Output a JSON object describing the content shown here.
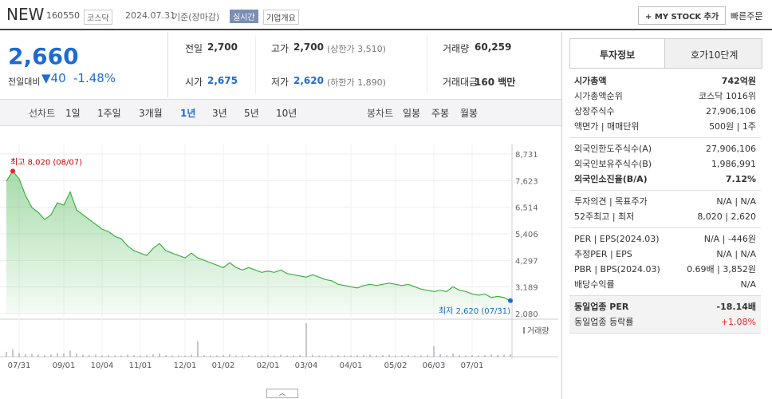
{
  "header": {
    "name": "NEW",
    "code": "160550",
    "market": "코스닥",
    "date": "2024.07.31",
    "basis": "기준(장마감)",
    "realtime": "실시간",
    "company_info": "기업개요",
    "my_stock": "MY STOCK 추가",
    "quick_order": "빠른주문"
  },
  "quote": {
    "price": "2,660",
    "change_label": "전일대비",
    "change": "40",
    "change_pct": "-1.48%",
    "fields": [
      {
        "label": "전일",
        "value": "2,700"
      },
      {
        "label": "고가",
        "value": "2,700",
        "extra": "(상한가 3,510)"
      },
      {
        "label": "거래량",
        "value": "60,259"
      },
      {
        "label": "시가",
        "value": "2,675"
      },
      {
        "label": "저가",
        "value": "2,620",
        "extra": "(하한가 1,890)"
      },
      {
        "label": "거래대금",
        "value": "160 백만"
      }
    ]
  },
  "tabs": {
    "line_label": "선차트",
    "periods": [
      "1일",
      "1주일",
      "3개월",
      "1년",
      "3년",
      "5년",
      "10년"
    ],
    "selected": 3,
    "candle_label": "봉차트",
    "candles": [
      "일봉",
      "주봉",
      "월봉"
    ]
  },
  "chart_data": {
    "type": "line",
    "color": "#3cb043",
    "categories": [
      null,
      null,
      "07/31",
      null,
      null,
      null,
      null,
      null,
      null,
      "09/01",
      null,
      null,
      null,
      null,
      null,
      "10/04",
      null,
      null,
      null,
      null,
      null,
      "11/01",
      null,
      null,
      null,
      null,
      null,
      null,
      "12/01",
      null,
      null,
      null,
      null,
      null,
      "01/02",
      null,
      null,
      null,
      null,
      null,
      null,
      "02/01",
      null,
      null,
      null,
      null,
      null,
      "03/04",
      null,
      null,
      null,
      null,
      null,
      null,
      "04/01",
      null,
      null,
      null,
      null,
      null,
      null,
      "05/02",
      null,
      null,
      null,
      null,
      null,
      "06/03",
      null,
      null,
      null,
      null,
      null,
      "07/01",
      null,
      null,
      null,
      null,
      null,
      null
    ],
    "values": [
      7600,
      8020,
      7700,
      7000,
      6500,
      6300,
      6000,
      6200,
      6700,
      6600,
      7150,
      6400,
      6200,
      6000,
      5800,
      5600,
      5500,
      5300,
      5200,
      4900,
      4700,
      4600,
      4500,
      4800,
      5000,
      4700,
      4600,
      4500,
      4400,
      4600,
      4400,
      4300,
      4200,
      4100,
      4000,
      4200,
      4000,
      3900,
      4000,
      3900,
      3800,
      3850,
      3800,
      3900,
      3750,
      3700,
      3650,
      3600,
      3700,
      3600,
      3500,
      3450,
      3300,
      3250,
      3200,
      3150,
      3250,
      3300,
      3250,
      3300,
      3350,
      3300,
      3250,
      3300,
      3200,
      3100,
      3050,
      3000,
      3050,
      3000,
      3200,
      3050,
      3000,
      2900,
      2850,
      2900,
      2750,
      2800,
      2750,
      2620
    ],
    "ylim": [
      2080,
      8731
    ],
    "yticks": [
      {
        "value": 2080,
        "label": "2,080"
      },
      {
        "value": 3189,
        "label": "3,189"
      },
      {
        "value": 4297,
        "label": "4,297"
      },
      {
        "value": 5406,
        "label": "5,406"
      },
      {
        "value": 6514,
        "label": "6,514"
      },
      {
        "value": 7623,
        "label": "7,623"
      },
      {
        "value": 8731,
        "label": "8,731"
      }
    ],
    "high_label": "최고 8,020 (08/07)",
    "low_label": "최저 2,620 (07/31)",
    "volume": {
      "label": "거래량",
      "color": "#8c8ca0",
      "values": [
        120000,
        180000,
        90000,
        60000,
        70000,
        50000,
        40000,
        60000,
        90000,
        80000,
        150000,
        70000,
        50000,
        40000,
        50000,
        30000,
        40000,
        30000,
        30000,
        50000,
        40000,
        30000,
        30000,
        60000,
        80000,
        40000,
        30000,
        30000,
        30000,
        50000,
        380000,
        40000,
        30000,
        30000,
        40000,
        60000,
        30000,
        30000,
        40000,
        30000,
        30000,
        40000,
        30000,
        50000,
        30000,
        30000,
        40000,
        820000,
        50000,
        30000,
        30000,
        30000,
        40000,
        30000,
        30000,
        30000,
        40000,
        50000,
        30000,
        40000,
        50000,
        30000,
        30000,
        40000,
        30000,
        30000,
        40000,
        260000,
        60000,
        40000,
        70000,
        40000,
        30000,
        40000,
        30000,
        40000,
        60000,
        40000,
        50000,
        60000
      ]
    }
  },
  "side": {
    "tabs": [
      "투자정보",
      "호가10단계"
    ],
    "sections": [
      [
        {
          "label": "시가총액",
          "value": "742억원",
          "bold": true
        },
        {
          "label": "시가총액순위",
          "value": "코스닥 1016위"
        },
        {
          "label": "상장주식수",
          "value": "27,906,106"
        },
        {
          "label": "액면가 | 매매단위",
          "value": "500원 | 1주"
        }
      ],
      [
        {
          "label": "외국인한도주식수(A)",
          "value": "27,906,106"
        },
        {
          "label": "외국인보유주식수(B)",
          "value": "1,986,991"
        },
        {
          "label": "외국인소진율(B/A)",
          "value": "7.12%",
          "bold": true
        }
      ],
      [
        {
          "label": "투자의견 | 목표주가",
          "value": "N/A | N/A"
        },
        {
          "label": "52주최고 | 최저",
          "value": "8,020 | 2,620"
        }
      ],
      [
        {
          "label": "PER | EPS(2024.03)",
          "value": "N/A | -446원"
        },
        {
          "label": "추정PER | EPS",
          "value": "N/A | N/A"
        },
        {
          "label": "PBR | BPS(2024.03)",
          "value": "0.69배 | 3,852원"
        },
        {
          "label": "배당수익률",
          "value": "N/A"
        }
      ],
      [
        {
          "label": "동일업종 PER",
          "value": "-18.14배",
          "bold": true
        },
        {
          "label": "동일업종 등락률",
          "value": "+1.08%",
          "red": true
        }
      ]
    ]
  }
}
